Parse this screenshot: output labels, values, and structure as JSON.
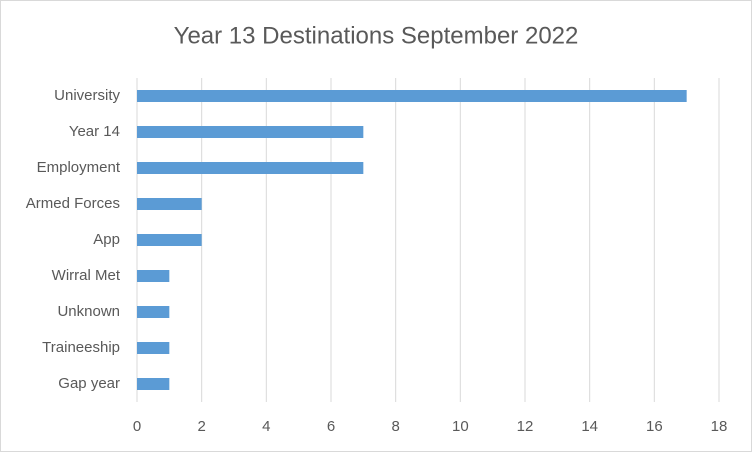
{
  "chart_data": {
    "type": "bar",
    "horizontal": true,
    "title": "Year 13 Destinations September 2022",
    "categories": [
      "University",
      "Year 14",
      "Employment",
      "Armed Forces",
      "App",
      "Wirral Met",
      "Unknown",
      "Traineeship",
      "Gap year"
    ],
    "values": [
      17,
      7,
      7,
      2,
      2,
      1,
      1,
      1,
      1
    ],
    "color": "#5b9bd5",
    "xlim": [
      0,
      18
    ],
    "xticks": [
      0,
      2,
      4,
      6,
      8,
      10,
      12,
      14,
      16,
      18
    ],
    "grid": true
  }
}
